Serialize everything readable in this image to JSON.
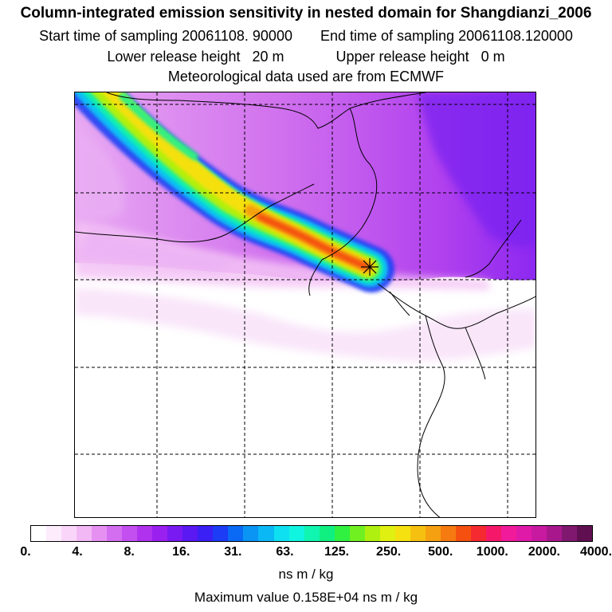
{
  "header": {
    "title": "Column-integrated emission sensitivity in nested domain for Shangdianzi_2006",
    "start_label": "Start time of sampling",
    "start_value": "20061108. 90000",
    "end_label": "End time of sampling",
    "end_value": "20061108.120000",
    "lower_label": "Lower release height",
    "lower_value": "20 m",
    "upper_label": "Upper release height",
    "upper_value": "0 m",
    "met_line": "Meteorological data used are from ECMWF"
  },
  "colorbar": {
    "ticks": [
      "0.",
      "4.",
      "8.",
      "16.",
      "31.",
      "63.",
      "125.",
      "250.",
      "500.",
      "1000.",
      "2000.",
      "4000."
    ],
    "colors": [
      "#ffffff",
      "#fcecfc",
      "#f9d6f9",
      "#f2b8f5",
      "#e691f2",
      "#d46ef0",
      "#c44ff0",
      "#b032ee",
      "#9a20f0",
      "#7a1af2",
      "#5a18f2",
      "#3a20f5",
      "#1c3cf5",
      "#0a6af5",
      "#0a95f5",
      "#0ab8f5",
      "#0ee0f2",
      "#10f5e0",
      "#10f5b0",
      "#10f080",
      "#30f040",
      "#70f020",
      "#b0f010",
      "#e0f010",
      "#f5e010",
      "#f5c010",
      "#f5a010",
      "#f57a10",
      "#f55010",
      "#f52a30",
      "#f5186a",
      "#f01a9a",
      "#e01aa8",
      "#c81aa0",
      "#a8188c",
      "#801870",
      "#601050"
    ],
    "units": "ns m / kg",
    "max_text": "Maximum value  0.158E+04 ns m / kg"
  },
  "map": {
    "receptor_marker": "star-marker"
  }
}
